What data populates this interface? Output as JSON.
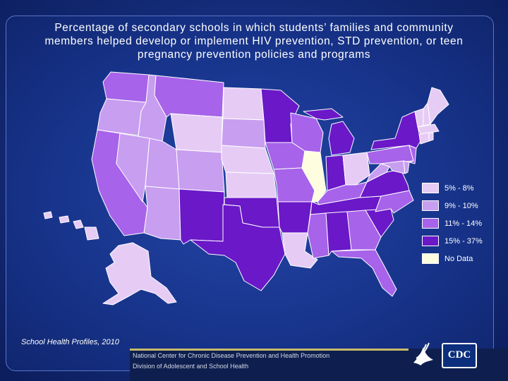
{
  "title": {
    "line1": "Percentage of secondary schools in which students’ families and community",
    "line2": "members helped develop or implement HIV prevention, STD prevention, or teen",
    "line3": "pregnancy prevention policies and programs"
  },
  "colors": {
    "bin1": "#e6ccf5",
    "bin2": "#c89ef0",
    "bin3": "#a763e9",
    "bin4": "#6a18c8",
    "nodata": "#fffde0",
    "background": "#17338a"
  },
  "legend": [
    {
      "label": "5% - 8%",
      "bin": "bin1"
    },
    {
      "label": "9% - 10%",
      "bin": "bin2"
    },
    {
      "label": "11% - 14%",
      "bin": "bin3"
    },
    {
      "label": "15% - 37%",
      "bin": "bin4"
    },
    {
      "label": "No Data",
      "bin": "nodata"
    }
  ],
  "states": {
    "WA": "bin3",
    "OR": "bin2",
    "CA": "bin3",
    "ID": "bin2",
    "NV": "bin2",
    "MT": "bin3",
    "WY": "bin1",
    "UT": "bin2",
    "AZ": "bin2",
    "CO": "bin2",
    "NM": "bin4",
    "ND": "bin1",
    "SD": "bin2",
    "NE": "bin1",
    "KS": "bin1",
    "OK": "bin4",
    "TX": "bin4",
    "MN": "bin4",
    "IA": "bin3",
    "MO": "bin3",
    "AR": "bin4",
    "LA": "bin1",
    "WI": "bin3",
    "IL": "nodata",
    "MI": "bin4",
    "IN": "bin4",
    "OH": "bin1",
    "KY": "bin3",
    "TN": "bin4",
    "MS": "bin3",
    "AL": "bin4",
    "GA": "bin3",
    "FL": "bin3",
    "SC": "bin4",
    "NC": "bin3",
    "VA": "bin4",
    "WV": "bin2",
    "PA": "bin3",
    "NY": "bin4",
    "ME": "bin1",
    "NH": "bin1",
    "VT": "bin1",
    "MA": "bin1",
    "CT": "bin1",
    "RI": "bin1",
    "NJ": "bin3",
    "DE": "bin2",
    "MD": "bin2",
    "AK": "bin1",
    "HI": "bin1"
  },
  "source": "School Health Profiles, 2010",
  "footer": {
    "line1": "National Center for Chronic Disease Prevention and Health Promotion",
    "line2": "Division of Adolescent and School Health"
  },
  "logo_text": "CDC"
}
